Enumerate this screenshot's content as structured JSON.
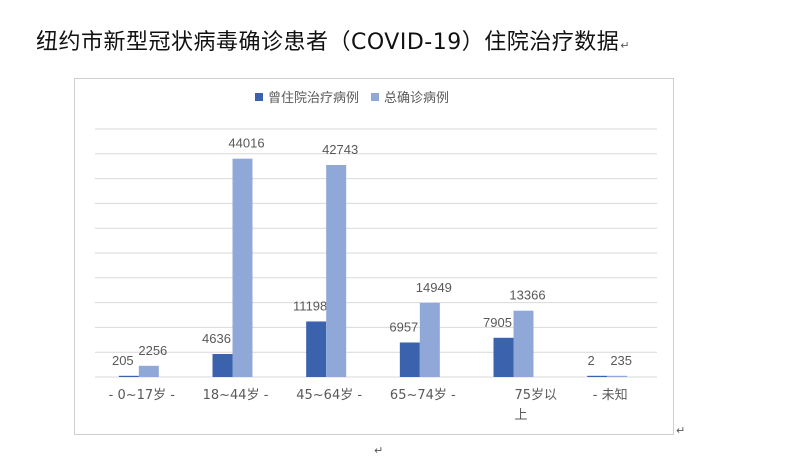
{
  "document": {
    "title": "纽约市新型冠状病毒确诊患者（COVID-19）住院治疗数据",
    "para_mark": "↵"
  },
  "colors": {
    "series1": "#3b62ad",
    "series2": "#8fa8d8",
    "grid": "#d9d9d9",
    "text": "#595959"
  },
  "chart_data": {
    "type": "bar",
    "title": "",
    "xlabel": "",
    "ylabel": "",
    "ylim": [
      0,
      50000
    ],
    "grid": true,
    "legend_position": "top-center",
    "categories": [
      [
        "-",
        "0~17岁",
        "-"
      ],
      [
        "18~44岁",
        "-"
      ],
      [
        "45~64岁",
        "-"
      ],
      [
        "65~74岁",
        "-"
      ],
      [
        "75岁以",
        "上"
      ],
      [
        "-",
        "未知"
      ]
    ],
    "series": [
      {
        "name": "曾住院治疗病例",
        "values": [
          205,
          4636,
          11198,
          6957,
          7905,
          2
        ]
      },
      {
        "name": "总确诊病例",
        "values": [
          2256,
          44016,
          42743,
          14949,
          13366,
          235
        ]
      }
    ]
  }
}
